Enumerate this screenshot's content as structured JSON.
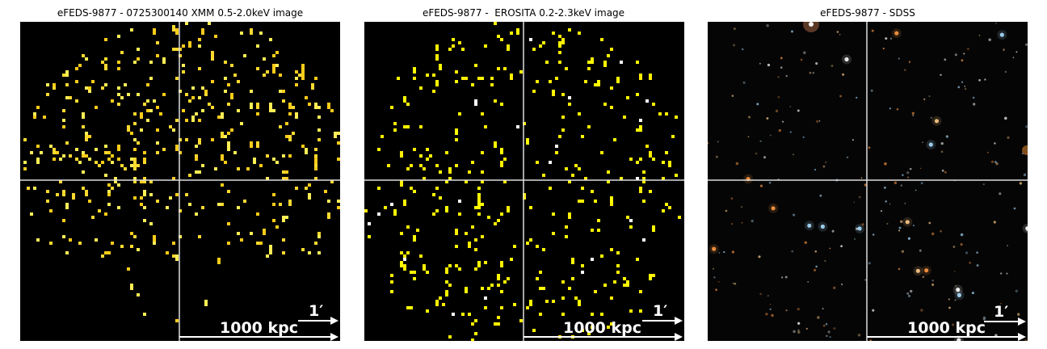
{
  "panels": [
    {
      "title": "eFEDS-9877 - 0725300140 XMM 0.5-2.0keV image",
      "kind": "xray",
      "arcsec_label": "1′",
      "kpc_label": "1000 kpc",
      "background_color": "#000000",
      "pixel_colors": [
        "#ffd92f",
        "#ffcc1a",
        "#ffee55"
      ]
    },
    {
      "title": "eFEDS-9877 -  EROSITA 0.2-2.3keV image",
      "kind": "xray",
      "arcsec_label": "1′",
      "kpc_label": "1000 kpc",
      "background_color": "#000000",
      "pixel_colors": [
        "#ffff00",
        "#ffee00",
        "#ffffff"
      ]
    },
    {
      "title": "eFEDS-9877 - SDSS",
      "kind": "optical",
      "arcsec_label": "1′",
      "kpc_label": "1000 kpc",
      "background_color": "#050505",
      "pixel_colors": [
        "#ffffff",
        "#ffcc88",
        "#ff9944",
        "#aaddff"
      ]
    }
  ],
  "crosshair_color": "#dddddd"
}
